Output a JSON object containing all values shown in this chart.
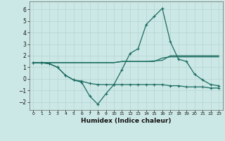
{
  "background_color": "#cce8e6",
  "grid_color": "#b8d4d2",
  "line_color": "#1a6b60",
  "xlabel": "Humidex (Indice chaleur)",
  "xlim": [
    -0.5,
    23.5
  ],
  "ylim": [
    -2.7,
    6.7
  ],
  "yticks": [
    -2,
    -1,
    0,
    1,
    2,
    3,
    4,
    5,
    6
  ],
  "xticks": [
    0,
    1,
    2,
    3,
    4,
    5,
    6,
    7,
    8,
    9,
    10,
    11,
    12,
    13,
    14,
    15,
    16,
    17,
    18,
    19,
    20,
    21,
    22,
    23
  ],
  "line1_x": [
    0,
    1,
    2,
    3,
    4,
    5,
    6,
    7,
    8,
    9,
    10,
    11,
    12,
    13,
    14,
    15,
    16,
    17,
    18,
    19,
    20,
    21,
    22,
    23
  ],
  "line1_y": [
    1.4,
    1.4,
    1.4,
    1.4,
    1.4,
    1.4,
    1.4,
    1.4,
    1.4,
    1.4,
    1.4,
    1.5,
    1.5,
    1.5,
    1.5,
    1.5,
    1.8,
    1.9,
    1.9,
    1.9,
    1.9,
    1.9,
    1.9,
    1.9
  ],
  "line2_x": [
    0,
    1,
    2,
    3,
    4,
    5,
    6,
    7,
    8,
    9,
    10,
    11,
    12,
    13,
    14,
    15,
    16,
    17,
    18,
    19,
    20,
    21,
    22,
    23
  ],
  "line2_y": [
    1.4,
    1.4,
    1.4,
    1.4,
    1.4,
    1.4,
    1.4,
    1.4,
    1.4,
    1.4,
    1.4,
    1.5,
    1.5,
    1.5,
    1.5,
    1.55,
    1.6,
    2.0,
    2.0,
    2.0,
    2.0,
    2.0,
    2.0,
    2.0
  ],
  "line3_x": [
    0,
    1,
    2,
    3,
    4,
    5,
    6,
    7,
    8,
    9,
    10,
    11,
    12,
    13,
    14,
    15,
    16,
    17,
    18,
    19,
    20,
    21,
    22,
    23
  ],
  "line3_y": [
    1.4,
    1.4,
    1.3,
    1.0,
    0.3,
    -0.1,
    -0.2,
    -0.4,
    -0.5,
    -0.5,
    -0.5,
    -0.5,
    -0.5,
    -0.5,
    -0.5,
    -0.5,
    -0.5,
    -0.6,
    -0.6,
    -0.7,
    -0.7,
    -0.7,
    -0.8,
    -0.8
  ],
  "line4_x": [
    0,
    1,
    2,
    3,
    4,
    5,
    6,
    7,
    8,
    9,
    10,
    11,
    12,
    13,
    14,
    15,
    16,
    17,
    18,
    19,
    20,
    21,
    22,
    23
  ],
  "line4_y": [
    1.4,
    1.4,
    1.3,
    1.0,
    0.3,
    -0.1,
    -0.3,
    -1.5,
    -2.2,
    -1.3,
    -0.5,
    0.8,
    2.2,
    2.6,
    4.7,
    5.4,
    6.1,
    3.2,
    1.7,
    1.5,
    0.4,
    -0.1,
    -0.5,
    -0.6
  ]
}
